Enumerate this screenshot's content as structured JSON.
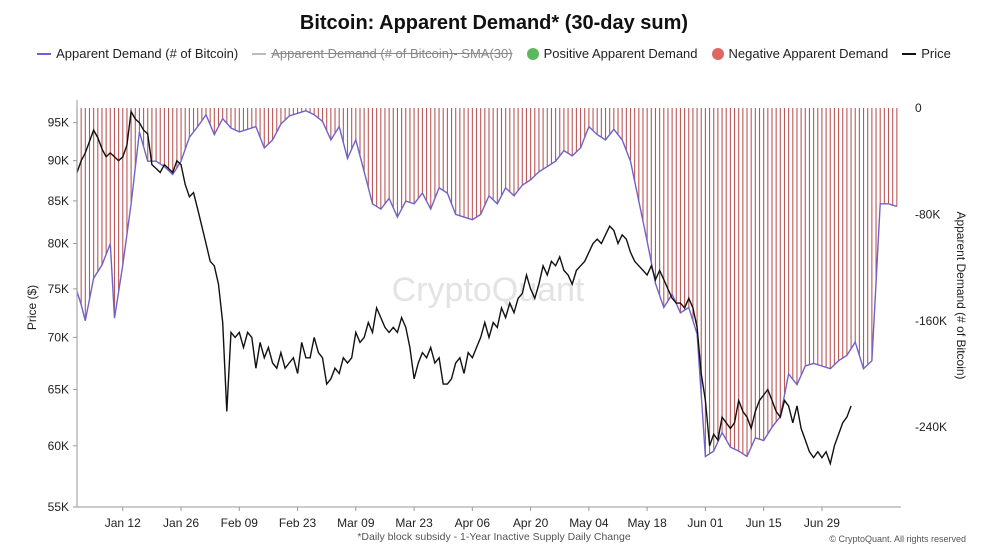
{
  "colors": {
    "demand_line": "#6f63c9",
    "sma_line": "#bbbbbb",
    "positive": "#5cb85c",
    "negative": "#e06666",
    "negative_bar": "#b03a3a",
    "price_line": "#111111",
    "watermark": "#e3e3e3"
  },
  "chart_data": {
    "type": "bar",
    "title": "Bitcoin: Apparent Demand* (30-day sum)",
    "legend_position": "top",
    "legend": [
      {
        "label": "Apparent Demand (# of Bitcoin)",
        "kind": "line",
        "color": "#6f63c9",
        "struck": false
      },
      {
        "label": "Apparent Demand (# of Bitcoin)- SMA(30)",
        "kind": "line",
        "color": "#bbbbbb",
        "struck": true
      },
      {
        "label": "Positive Apparent Demand",
        "kind": "dot",
        "color": "#5cb85c",
        "struck": false
      },
      {
        "label": "Negative Apparent Demand",
        "kind": "dot",
        "color": "#e06666",
        "struck": false
      },
      {
        "label": "Price",
        "kind": "line",
        "color": "#111111",
        "struck": false
      }
    ],
    "x_tick_labels": [
      "Jan 12",
      "Jan 26",
      "Feb 09",
      "Feb 23",
      "Mar 09",
      "Mar 23",
      "Apr 06",
      "Apr 20",
      "May 04",
      "May 18",
      "Jun 01",
      "Jun 15",
      "Jun 29"
    ],
    "x_range_days": [
      0,
      198
    ],
    "x_tick_days": [
      11,
      25,
      39,
      53,
      67,
      81,
      95,
      109,
      123,
      137,
      151,
      165,
      179
    ],
    "y_left": {
      "label": "Price ($)",
      "scale": "log",
      "range": [
        55000,
        97000
      ],
      "ticks": [
        95000,
        90000,
        85000,
        80000,
        75000,
        70000,
        65000,
        60000,
        55000
      ],
      "tick_labels": [
        "95K",
        "90K",
        "85K",
        "80K",
        "75K",
        "70K",
        "65K",
        "60K",
        "55K"
      ]
    },
    "y_right": {
      "label": "Apparent Demand (# of Bitcoin)",
      "range": [
        -300000,
        0
      ],
      "ticks": [
        0,
        -80000,
        -160000,
        -240000
      ],
      "tick_labels": [
        "0",
        "-80K",
        "-160K",
        "-240K"
      ]
    },
    "grid": false,
    "watermark": "CryptoQuant",
    "series": [
      {
        "name": "Apparent Demand (# of Bitcoin)",
        "axis": "right",
        "style": "bars+line",
        "points": [
          [
            0,
            -138000
          ],
          [
            1,
            -148000
          ],
          [
            2,
            -160000
          ],
          [
            4,
            -128000
          ],
          [
            6,
            -118000
          ],
          [
            8,
            -102000
          ],
          [
            9,
            -158000
          ],
          [
            11,
            -118000
          ],
          [
            13,
            -72000
          ],
          [
            15,
            -18000
          ],
          [
            17,
            -40000
          ],
          [
            19,
            -40000
          ],
          [
            21,
            -44000
          ],
          [
            23,
            -50000
          ],
          [
            25,
            -40000
          ],
          [
            27,
            -22000
          ],
          [
            29,
            -14000
          ],
          [
            31,
            -5000
          ],
          [
            33,
            -20000
          ],
          [
            35,
            -8000
          ],
          [
            37,
            -15000
          ],
          [
            39,
            -18000
          ],
          [
            41,
            -16000
          ],
          [
            43,
            -14000
          ],
          [
            45,
            -30000
          ],
          [
            47,
            -24000
          ],
          [
            49,
            -12000
          ],
          [
            51,
            -6000
          ],
          [
            53,
            -4000
          ],
          [
            55,
            -2000
          ],
          [
            57,
            -5000
          ],
          [
            59,
            -10000
          ],
          [
            61,
            -24000
          ],
          [
            63,
            -14000
          ],
          [
            65,
            -38000
          ],
          [
            67,
            -24000
          ],
          [
            69,
            -48000
          ],
          [
            71,
            -72000
          ],
          [
            73,
            -76000
          ],
          [
            75,
            -68000
          ],
          [
            77,
            -82000
          ],
          [
            79,
            -70000
          ],
          [
            81,
            -72000
          ],
          [
            83,
            -64000
          ],
          [
            85,
            -76000
          ],
          [
            87,
            -60000
          ],
          [
            89,
            -64000
          ],
          [
            91,
            -80000
          ],
          [
            93,
            -82000
          ],
          [
            95,
            -84000
          ],
          [
            97,
            -80000
          ],
          [
            99,
            -66000
          ],
          [
            101,
            -72000
          ],
          [
            103,
            -60000
          ],
          [
            105,
            -66000
          ],
          [
            107,
            -58000
          ],
          [
            109,
            -54000
          ],
          [
            111,
            -48000
          ],
          [
            113,
            -44000
          ],
          [
            115,
            -40000
          ],
          [
            117,
            -32000
          ],
          [
            119,
            -36000
          ],
          [
            121,
            -30000
          ],
          [
            123,
            -14000
          ],
          [
            125,
            -20000
          ],
          [
            127,
            -24000
          ],
          [
            129,
            -16000
          ],
          [
            131,
            -24000
          ],
          [
            133,
            -40000
          ],
          [
            135,
            -70000
          ],
          [
            137,
            -100000
          ],
          [
            139,
            -132000
          ],
          [
            141,
            -150000
          ],
          [
            143,
            -140000
          ],
          [
            145,
            -154000
          ],
          [
            147,
            -150000
          ],
          [
            149,
            -170000
          ],
          [
            151,
            -262000
          ],
          [
            153,
            -258000
          ],
          [
            155,
            -244000
          ],
          [
            157,
            -255000
          ],
          [
            159,
            -258000
          ],
          [
            161,
            -262000
          ],
          [
            163,
            -248000
          ],
          [
            165,
            -250000
          ],
          [
            167,
            -240000
          ],
          [
            169,
            -232000
          ],
          [
            171,
            -200000
          ],
          [
            173,
            -208000
          ],
          [
            175,
            -194000
          ],
          [
            177,
            -192000
          ],
          [
            179,
            -194000
          ],
          [
            181,
            -196000
          ],
          [
            183,
            -190000
          ],
          [
            185,
            -186000
          ],
          [
            187,
            -176000
          ],
          [
            189,
            -196000
          ],
          [
            191,
            -190000
          ],
          [
            193,
            -72000
          ],
          [
            195,
            -72000
          ],
          [
            197,
            -74000
          ]
        ]
      },
      {
        "name": "Price",
        "axis": "left",
        "style": "line",
        "points": [
          [
            0,
            88500
          ],
          [
            1,
            90000
          ],
          [
            2,
            91000
          ],
          [
            3,
            92500
          ],
          [
            4,
            94000
          ],
          [
            5,
            93000
          ],
          [
            6,
            91500
          ],
          [
            7,
            90500
          ],
          [
            8,
            91000
          ],
          [
            9,
            90500
          ],
          [
            10,
            90000
          ],
          [
            11,
            90500
          ],
          [
            12,
            92000
          ],
          [
            13,
            96500
          ],
          [
            14,
            95500
          ],
          [
            15,
            95000
          ],
          [
            16,
            94000
          ],
          [
            17,
            93500
          ],
          [
            18,
            89500
          ],
          [
            19,
            89000
          ],
          [
            20,
            88500
          ],
          [
            21,
            89500
          ],
          [
            22,
            89000
          ],
          [
            23,
            88500
          ],
          [
            24,
            90000
          ],
          [
            25,
            89500
          ],
          [
            26,
            87000
          ],
          [
            27,
            85500
          ],
          [
            28,
            86000
          ],
          [
            29,
            84000
          ],
          [
            30,
            82000
          ],
          [
            31,
            80000
          ],
          [
            32,
            78000
          ],
          [
            33,
            77500
          ],
          [
            34,
            75500
          ],
          [
            35,
            71500
          ],
          [
            36,
            63000
          ],
          [
            37,
            70500
          ],
          [
            38,
            70000
          ],
          [
            39,
            70500
          ],
          [
            40,
            69000
          ],
          [
            41,
            70500
          ],
          [
            42,
            70000
          ],
          [
            43,
            67000
          ],
          [
            44,
            69500
          ],
          [
            45,
            68000
          ],
          [
            46,
            69000
          ],
          [
            47,
            67500
          ],
          [
            48,
            67000
          ],
          [
            49,
            68500
          ],
          [
            50,
            67000
          ],
          [
            51,
            67500
          ],
          [
            52,
            68000
          ],
          [
            53,
            66500
          ],
          [
            54,
            69500
          ],
          [
            55,
            68000
          ],
          [
            56,
            68000
          ],
          [
            57,
            70000
          ],
          [
            58,
            68500
          ],
          [
            59,
            68000
          ],
          [
            60,
            65500
          ],
          [
            61,
            66000
          ],
          [
            62,
            67000
          ],
          [
            63,
            66500
          ],
          [
            64,
            68000
          ],
          [
            65,
            67500
          ],
          [
            66,
            68000
          ],
          [
            67,
            70500
          ],
          [
            68,
            69500
          ],
          [
            69,
            70000
          ],
          [
            70,
            71500
          ],
          [
            71,
            70500
          ],
          [
            72,
            73000
          ],
          [
            73,
            72000
          ],
          [
            74,
            71000
          ],
          [
            75,
            70500
          ],
          [
            76,
            71000
          ],
          [
            77,
            70500
          ],
          [
            78,
            72000
          ],
          [
            79,
            71000
          ],
          [
            80,
            69000
          ],
          [
            81,
            66000
          ],
          [
            82,
            67500
          ],
          [
            83,
            68500
          ],
          [
            84,
            68000
          ],
          [
            85,
            69000
          ],
          [
            86,
            67500
          ],
          [
            87,
            68000
          ],
          [
            88,
            65500
          ],
          [
            89,
            65500
          ],
          [
            90,
            66000
          ],
          [
            91,
            67500
          ],
          [
            92,
            68000
          ],
          [
            93,
            66500
          ],
          [
            94,
            68500
          ],
          [
            95,
            68000
          ],
          [
            96,
            69000
          ],
          [
            97,
            70000
          ],
          [
            98,
            71500
          ],
          [
            99,
            70000
          ],
          [
            100,
            71500
          ],
          [
            101,
            71000
          ],
          [
            102,
            73000
          ],
          [
            103,
            72000
          ],
          [
            104,
            73500
          ],
          [
            105,
            72500
          ],
          [
            106,
            74000
          ],
          [
            107,
            74500
          ],
          [
            108,
            76500
          ],
          [
            109,
            75000
          ],
          [
            110,
            74000
          ],
          [
            111,
            75500
          ],
          [
            112,
            77500
          ],
          [
            113,
            76500
          ],
          [
            114,
            78000
          ],
          [
            115,
            77500
          ],
          [
            116,
            78500
          ],
          [
            117,
            77000
          ],
          [
            118,
            76500
          ],
          [
            119,
            75500
          ],
          [
            120,
            77000
          ],
          [
            121,
            77500
          ],
          [
            122,
            78000
          ],
          [
            123,
            79000
          ],
          [
            124,
            80000
          ],
          [
            125,
            80500
          ],
          [
            126,
            80000
          ],
          [
            127,
            81000
          ],
          [
            128,
            82000
          ],
          [
            129,
            81500
          ],
          [
            130,
            80000
          ],
          [
            131,
            81000
          ],
          [
            132,
            80500
          ],
          [
            133,
            79000
          ],
          [
            134,
            78000
          ],
          [
            135,
            77500
          ],
          [
            136,
            77000
          ],
          [
            137,
            76500
          ],
          [
            138,
            77500
          ],
          [
            139,
            76000
          ],
          [
            140,
            77000
          ],
          [
            141,
            76000
          ],
          [
            142,
            75000
          ],
          [
            143,
            74000
          ],
          [
            144,
            73500
          ],
          [
            145,
            73500
          ],
          [
            146,
            73000
          ],
          [
            147,
            74000
          ],
          [
            148,
            73000
          ],
          [
            149,
            71000
          ],
          [
            150,
            66500
          ],
          [
            151,
            64000
          ],
          [
            152,
            60000
          ],
          [
            153,
            61000
          ],
          [
            154,
            60500
          ],
          [
            155,
            62500
          ],
          [
            156,
            62000
          ],
          [
            157,
            61500
          ],
          [
            158,
            62000
          ],
          [
            159,
            64000
          ],
          [
            160,
            63000
          ],
          [
            161,
            62500
          ],
          [
            162,
            61500
          ],
          [
            163,
            63000
          ],
          [
            164,
            64000
          ],
          [
            165,
            64500
          ],
          [
            166,
            65000
          ],
          [
            167,
            64000
          ],
          [
            168,
            63000
          ],
          [
            169,
            62500
          ],
          [
            170,
            64000
          ],
          [
            171,
            63500
          ],
          [
            172,
            62000
          ],
          [
            173,
            63500
          ],
          [
            174,
            61500
          ],
          [
            175,
            60500
          ],
          [
            176,
            59500
          ],
          [
            177,
            59000
          ],
          [
            178,
            59500
          ],
          [
            179,
            59000
          ],
          [
            180,
            59500
          ],
          [
            181,
            58500
          ],
          [
            182,
            60000
          ],
          [
            183,
            61000
          ],
          [
            184,
            62000
          ],
          [
            185,
            62500
          ],
          [
            186,
            63500
          ]
        ]
      }
    ]
  },
  "footnote": "*Daily block subsidy - 1-Year Inactive Supply Daily Change",
  "copyright": "© CryptoQuant. All rights reserved"
}
